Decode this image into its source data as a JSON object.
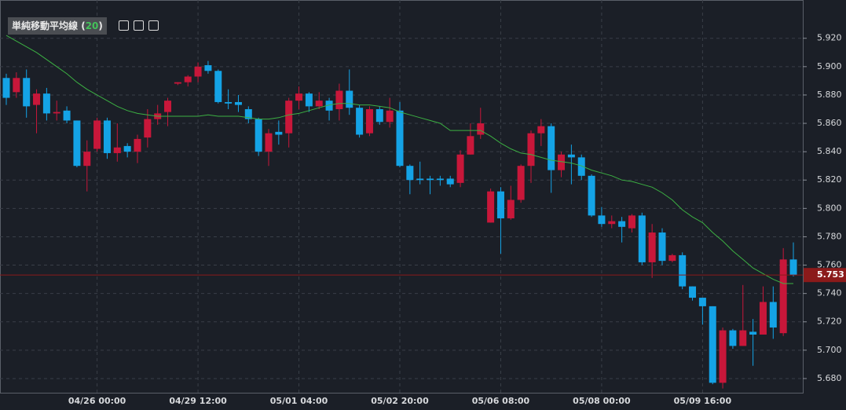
{
  "chart_data": {
    "type": "candlestick",
    "categories": [
      null,
      null,
      null,
      null,
      null,
      null,
      null,
      null,
      null,
      "04/26 00:00",
      null,
      null,
      null,
      null,
      null,
      null,
      null,
      null,
      null,
      "04/29 12:00",
      null,
      null,
      null,
      null,
      null,
      null,
      null,
      null,
      null,
      "05/01 04:00",
      null,
      null,
      null,
      null,
      null,
      null,
      null,
      null,
      null,
      "05/02 20:00",
      null,
      null,
      null,
      null,
      null,
      null,
      null,
      null,
      null,
      "05/06 08:00",
      null,
      null,
      null,
      null,
      null,
      null,
      null,
      null,
      null,
      "05/08 00:00",
      null,
      null,
      null,
      null,
      null,
      null,
      null,
      null,
      null,
      "05/09 16:00",
      null,
      null,
      null,
      null,
      null,
      null,
      null,
      null,
      null
    ],
    "open": [
      5.892,
      5.882,
      5.892,
      5.873,
      5.881,
      5.867,
      5.869,
      5.862,
      5.83,
      5.842,
      5.862,
      5.839,
      5.844,
      5.84,
      5.85,
      5.863,
      5.868,
      5.888,
      5.889,
      5.893,
      5.901,
      5.897,
      5.875,
      5.875,
      5.87,
      5.863,
      5.84,
      5.854,
      5.853,
      5.876,
      5.881,
      5.872,
      5.876,
      5.87,
      5.883,
      5.871,
      5.853,
      5.87,
      5.861,
      5.869,
      5.83,
      5.821,
      5.821,
      5.821,
      5.821,
      5.818,
      5.838,
      5.852,
      5.79,
      5.812,
      5.793,
      5.806,
      5.83,
      5.853,
      5.858,
      5.827,
      5.838,
      5.836,
      5.823,
      5.795,
      5.789,
      5.791,
      5.786,
      5.795,
      5.762,
      5.783,
      5.763,
      5.767,
      5.745,
      5.737,
      5.731,
      5.677,
      5.714,
      5.703,
      5.713,
      5.711,
      5.734,
      5.712,
      5.764
    ],
    "high": [
      5.895,
      5.896,
      5.898,
      5.884,
      5.885,
      5.876,
      5.872,
      5.862,
      5.848,
      5.864,
      5.864,
      5.86,
      5.846,
      5.852,
      5.87,
      5.873,
      5.878,
      5.889,
      5.894,
      5.903,
      5.904,
      5.898,
      5.884,
      5.88,
      5.872,
      5.864,
      5.856,
      5.862,
      5.878,
      5.886,
      5.882,
      5.882,
      5.878,
      5.888,
      5.898,
      5.873,
      5.872,
      5.872,
      5.878,
      5.875,
      5.831,
      5.833,
      5.823,
      5.823,
      5.823,
      5.841,
      5.86,
      5.871,
      5.814,
      5.815,
      5.816,
      5.831,
      5.855,
      5.863,
      5.86,
      5.84,
      5.845,
      5.838,
      5.824,
      5.801,
      5.795,
      5.794,
      5.796,
      5.797,
      5.789,
      5.786,
      5.768,
      5.769,
      5.745,
      5.737,
      5.731,
      5.716,
      5.715,
      5.746,
      5.722,
      5.745,
      5.745,
      5.772,
      5.776
    ],
    "low": [
      5.873,
      5.878,
      5.864,
      5.853,
      5.862,
      5.862,
      5.86,
      5.829,
      5.812,
      5.84,
      5.835,
      5.833,
      5.836,
      5.832,
      5.843,
      5.859,
      5.858,
      5.887,
      5.886,
      5.889,
      5.895,
      5.874,
      5.87,
      5.868,
      5.86,
      5.837,
      5.83,
      5.845,
      5.843,
      5.87,
      5.868,
      5.87,
      5.862,
      5.862,
      5.866,
      5.85,
      5.851,
      5.859,
      5.857,
      5.829,
      5.81,
      5.817,
      5.81,
      5.816,
      5.815,
      5.815,
      5.838,
      5.849,
      5.79,
      5.768,
      5.792,
      5.804,
      5.818,
      5.844,
      5.811,
      5.822,
      5.817,
      5.82,
      5.794,
      5.787,
      5.786,
      5.776,
      5.783,
      5.76,
      5.751,
      5.76,
      5.762,
      5.743,
      5.735,
      5.718,
      5.676,
      5.673,
      5.701,
      5.703,
      5.689,
      5.711,
      5.708,
      5.71,
      5.752
    ],
    "close": [
      5.878,
      5.892,
      5.872,
      5.881,
      5.867,
      5.868,
      5.862,
      5.83,
      5.84,
      5.862,
      5.839,
      5.843,
      5.84,
      5.849,
      5.863,
      5.867,
      5.876,
      5.889,
      5.893,
      5.9,
      5.897,
      5.875,
      5.874,
      5.873,
      5.863,
      5.84,
      5.853,
      5.852,
      5.876,
      5.881,
      5.872,
      5.876,
      5.869,
      5.883,
      5.871,
      5.852,
      5.87,
      5.861,
      5.869,
      5.83,
      5.82,
      5.82,
      5.82,
      5.82,
      5.817,
      5.838,
      5.851,
      5.86,
      5.812,
      5.793,
      5.806,
      5.83,
      5.853,
      5.858,
      5.827,
      5.838,
      5.836,
      5.823,
      5.795,
      5.789,
      5.791,
      5.787,
      5.795,
      5.762,
      5.783,
      5.763,
      5.767,
      5.745,
      5.737,
      5.731,
      5.677,
      5.714,
      5.703,
      5.714,
      5.711,
      5.734,
      5.716,
      5.764,
      5.753
    ],
    "up_color": "#c8173a",
    "down_color": "#14a3e6",
    "overlay": {
      "name": "単純移動平均線",
      "period": 20,
      "color": "#3cb043",
      "values": [
        5.922,
        5.918,
        5.914,
        5.91,
        5.905,
        5.9,
        5.895,
        5.889,
        5.884,
        5.88,
        5.876,
        5.872,
        5.869,
        5.867,
        5.866,
        5.865,
        5.865,
        5.865,
        5.865,
        5.865,
        5.866,
        5.865,
        5.865,
        5.865,
        5.864,
        5.863,
        5.863,
        5.864,
        5.866,
        5.867,
        5.869,
        5.871,
        5.873,
        5.874,
        5.874,
        5.873,
        5.873,
        5.872,
        5.871,
        5.868,
        5.866,
        5.864,
        5.862,
        5.86,
        5.855,
        5.855,
        5.855,
        5.855,
        5.851,
        5.846,
        5.842,
        5.839,
        5.838,
        5.836,
        5.834,
        5.833,
        5.832,
        5.83,
        5.827,
        5.825,
        5.823,
        5.82,
        5.819,
        5.817,
        5.815,
        5.811,
        5.806,
        5.799,
        5.794,
        5.79,
        5.783,
        5.777,
        5.77,
        5.764,
        5.758,
        5.754,
        5.75,
        5.747,
        5.747
      ]
    },
    "ylim": [
      5.67,
      5.947
    ],
    "yticks": [
      {
        "value": 5.68,
        "label": "5.680"
      },
      {
        "value": 5.7,
        "label": "5.700"
      },
      {
        "value": 5.72,
        "label": "5.720"
      },
      {
        "value": 5.74,
        "label": "5.740"
      },
      {
        "value": 5.76,
        "label": "5.760"
      },
      {
        "value": 5.78,
        "label": "5.780"
      },
      {
        "value": 5.8,
        "label": "5.800"
      },
      {
        "value": 5.82,
        "label": "5.820"
      },
      {
        "value": 5.84,
        "label": "5.840"
      },
      {
        "value": 5.86,
        "label": "5.860"
      },
      {
        "value": 5.88,
        "label": "5.880"
      },
      {
        "value": 5.9,
        "label": "5.900"
      },
      {
        "value": 5.92,
        "label": "5.920"
      }
    ],
    "last_price": {
      "value": 5.753,
      "label": "5.753"
    },
    "grid": true
  }
}
